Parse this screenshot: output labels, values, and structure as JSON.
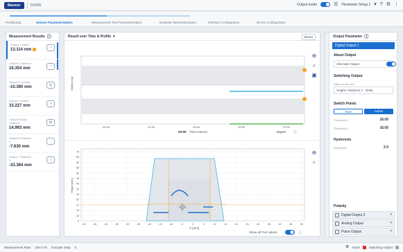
{
  "topbar": {
    "logo": "Baumer",
    "title": "OX200",
    "status_label": "Output mode",
    "device": "Parameter Setup 1"
  },
  "steps": [
    "Positioning",
    "Sensor Parameterization",
    "Measurement Tool Parameterization",
    "Evaluate Parameterization",
    "Interface Configuration",
    "Device Configuration"
  ],
  "left": {
    "title": "Measurement Results",
    "rows": [
      {
        "name": "Output 1 Width",
        "value": "13.114 mm",
        "icon": "□",
        "flag": true
      },
      {
        "name": "Output 2 Distance",
        "value": "16.354 mm",
        "icon": "◔",
        "flag": false
      },
      {
        "name": "Output 3 Contour",
        "value": "-10.390 mm",
        "icon": "◎",
        "flag": false
      },
      {
        "name": "Output 4 Height",
        "value": "33.227 mm",
        "icon": "◑",
        "flag": false
      },
      {
        "name": "Output 5 Edge Distance",
        "value": "14.993 mm",
        "icon": "⊞",
        "flag": false
      },
      {
        "name": "Output 6 Distance 2",
        "value": "-7.630 mm",
        "icon": "⋮",
        "flag": false
      },
      {
        "name": "Output 7 Distance 3",
        "value": "-33.384 mm",
        "icon": "○",
        "flag": false
      }
    ]
  },
  "center": {
    "chart1_title": "Result over Time & Profile",
    "chart1_button": "Reset",
    "chart1": {
      "ylabel": "Width [mm]",
      "xticks": [
        "20:20",
        "20:30",
        "20:40",
        "20:50",
        "21:00"
      ],
      "time_label": "Time interval",
      "time_value": "00:50",
      "export_label": "Export"
    },
    "chart2": {
      "ylabel": "Height [mm]",
      "xlabel": "X [mm]",
      "yticks": [
        "70",
        "65",
        "60",
        "55",
        "50",
        "45",
        "40",
        "35",
        "30",
        "25",
        "20",
        "15",
        "10",
        "5"
      ],
      "xticks": [
        "-50",
        "-45",
        "-40",
        "-35",
        "-30",
        "-25",
        "-20",
        "-15",
        "-10",
        "-5",
        "0",
        "5",
        "10",
        "15",
        "20",
        "25",
        "30",
        "35",
        "40",
        "45",
        "50"
      ],
      "toggle_label": "Show all Tool values"
    }
  },
  "right": {
    "title": "Output Parameter",
    "selected": "Digital Output 1",
    "about_label": "About Output",
    "output_name": "Alternate Output",
    "switching_label": "Switching Output",
    "source_small": "Data Source Set",
    "source_value": "Height / Distance 1 · Delta",
    "switch_points": "Switch Points",
    "btn_a": "Start",
    "btn_b": "Active",
    "threshold1_label": "Threshold 1",
    "threshold1_value": "16.00",
    "threshold2_label": "Threshold 2",
    "threshold2_value": "16.00",
    "hysteresis_label": "Hysteresis",
    "hysteresis_small": "Hysteresis",
    "hysteresis_value": "2.0",
    "polarity_label": "Polarity",
    "accordions": [
      "Digital Output 2",
      "Analog Output",
      "Pulse Output"
    ]
  },
  "statusbar": {
    "left1": "Measurement Rate",
    "left2": "100.0 Hz",
    "left3": "Encoder Step",
    "left4": "0",
    "r1": "Alarm",
    "r2": "Switching Output"
  },
  "colors": {
    "accent": "#1b6fd0",
    "cyan": "#3ab6e6",
    "green": "#58b84a",
    "orange": "#f5a623"
  }
}
